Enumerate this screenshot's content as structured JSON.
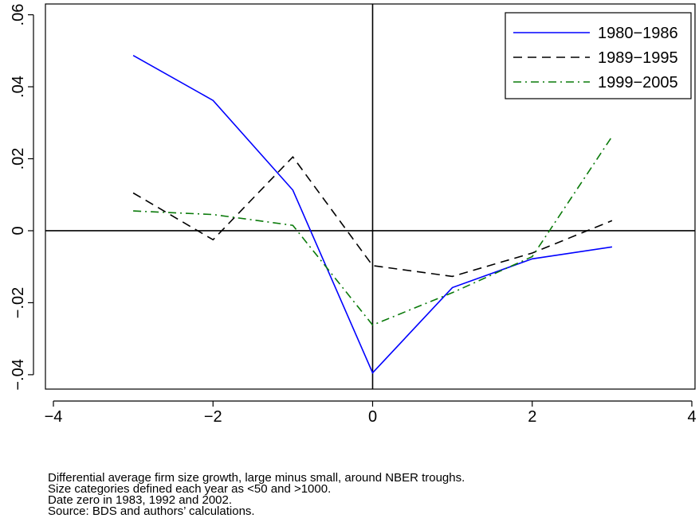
{
  "chart_data": {
    "type": "line",
    "xlim": [
      -4,
      4
    ],
    "ylim": [
      -0.044,
      0.063
    ],
    "x_ticks": [
      -4,
      -2,
      0,
      2,
      4
    ],
    "x_tick_labels": [
      "−4",
      "−2",
      "0",
      "2",
      "4"
    ],
    "y_ticks": [
      -0.04,
      -0.02,
      0,
      0.02,
      0.04,
      0.06
    ],
    "y_tick_labels": [
      "−.04",
      "−.02",
      "0",
      ".02",
      ".04",
      ".06"
    ],
    "reference_lines": {
      "x": 0,
      "y": 0
    },
    "legend_position": "top-right",
    "series": [
      {
        "name": "1980−1986",
        "color": "#0000ff",
        "dash": "solid",
        "x": [
          -3,
          -2,
          -1,
          0,
          1,
          2,
          3
        ],
        "y": [
          0.0487,
          0.0362,
          0.0113,
          -0.0395,
          -0.0158,
          -0.0078,
          -0.0045
        ]
      },
      {
        "name": "1989−1995",
        "color": "#000000",
        "dash": "dash",
        "x": [
          -3,
          -2,
          -1,
          0,
          1,
          2,
          3
        ],
        "y": [
          0.0105,
          -0.0025,
          0.0205,
          -0.0097,
          -0.0127,
          -0.0062,
          0.0028
        ]
      },
      {
        "name": "1999−2005",
        "color": "#0a7a0a",
        "dash": "dashdot",
        "x": [
          -3,
          -2,
          -1,
          0,
          1,
          2,
          3
        ],
        "y": [
          0.0055,
          0.0045,
          0.0015,
          -0.0262,
          -0.0172,
          -0.0072,
          0.0262
        ]
      }
    ]
  },
  "notes": [
    "Differential average firm size growth, large minus small, around NBER troughs.",
    "Size categories defined each year as <50 and >1000.",
    "Date zero in 1983, 1992 and 2002.",
    "Source: BDS and authors’ calculations."
  ]
}
